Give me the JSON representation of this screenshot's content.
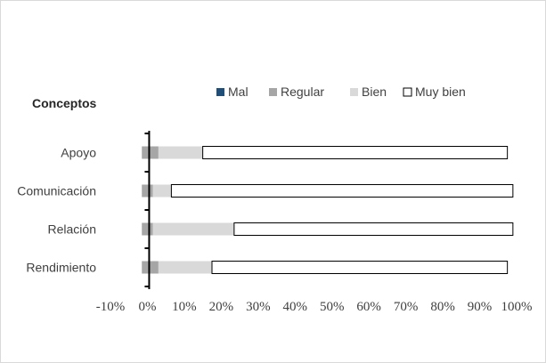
{
  "chart_data": {
    "type": "bar",
    "orientation": "horizontal",
    "stacked": true,
    "title": "Conceptos",
    "categories": [
      "Apoyo",
      "Comunicación",
      "Relación",
      "Rendimiento"
    ],
    "series": [
      {
        "name": "Mal",
        "color": "#1f4e79",
        "values": [
          0,
          0,
          0,
          0
        ]
      },
      {
        "name": "Regular",
        "color": "#a6a6a6",
        "values": [
          3,
          1.5,
          1.5,
          3
        ]
      },
      {
        "name": "Bien",
        "color": "#d9d9d9",
        "values": [
          12,
          5,
          22,
          14.5
        ]
      },
      {
        "name": "Muy bien",
        "color": "#ffffff",
        "values": [
          82.5,
          92.5,
          75.5,
          80
        ]
      }
    ],
    "xlim": [
      -10,
      100
    ],
    "xticks": [
      "-10%",
      "0%",
      "10%",
      "20%",
      "30%",
      "40%",
      "50%",
      "60%",
      "70%",
      "80%",
      "90%",
      "100%"
    ],
    "legend_position": "top",
    "grid": true
  }
}
